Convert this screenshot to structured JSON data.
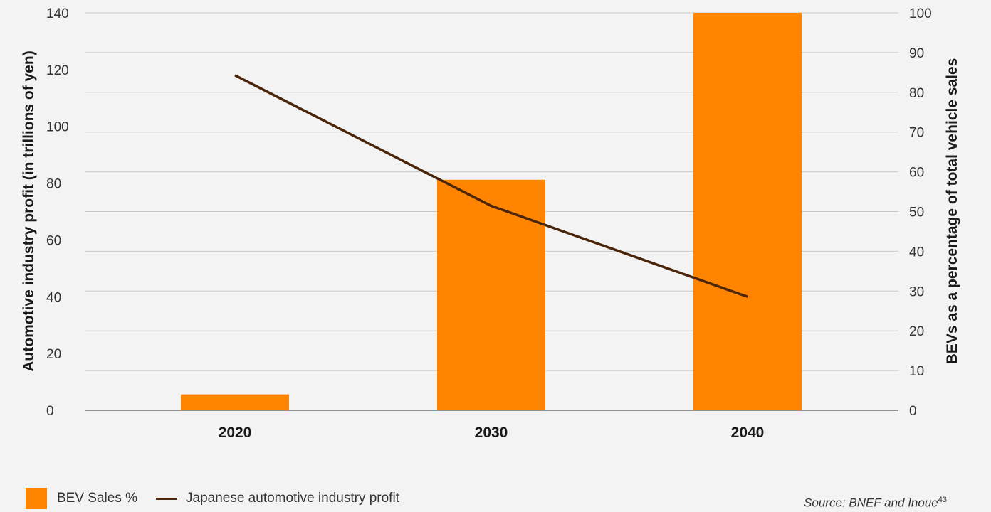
{
  "chart_data": {
    "type": "bar+line",
    "categories": [
      "2020",
      "2030",
      "2040"
    ],
    "series": [
      {
        "name": "BEV Sales %",
        "type": "bar",
        "axis": "right",
        "values": [
          4,
          58,
          100
        ],
        "color": "#ff8500"
      },
      {
        "name": "Japanese automotive industry profit",
        "type": "line",
        "axis": "left",
        "values": [
          118,
          72,
          40
        ],
        "color": "#4a2509"
      }
    ],
    "y_left": {
      "label": "Automotive industry profit (in trillions of yen)",
      "ticks": [
        0,
        20,
        40,
        60,
        80,
        100,
        120,
        140
      ],
      "lim": [
        0,
        140
      ]
    },
    "y_right": {
      "label": "BEVs as a percentage of total vehicle sales",
      "ticks": [
        0,
        10,
        20,
        30,
        40,
        50,
        60,
        70,
        80,
        90,
        100
      ],
      "lim": [
        0,
        100
      ]
    },
    "grid": true,
    "legend": "bottom-left"
  },
  "legend": {
    "bar_label": "BEV Sales %",
    "line_label": "Japanese automotive industry profit"
  },
  "source": {
    "text": "Source: BNEF and Inoue",
    "note": "43"
  },
  "colors": {
    "background": "#f3f3f3",
    "bar": "#ff8500",
    "line": "#4a2509",
    "grid": "#c8c8c8"
  }
}
